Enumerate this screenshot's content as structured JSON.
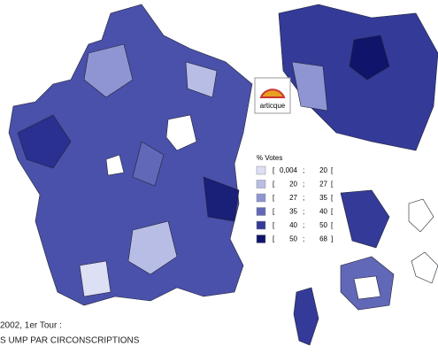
{
  "logo": "articque",
  "legend": {
    "title": "% Votes",
    "classes": [
      {
        "open": "[",
        "low": "0,004",
        "sep": ";",
        "high": "20",
        "close": "[",
        "color": "#dde0f5"
      },
      {
        "open": "[",
        "low": "20",
        "sep": ";",
        "high": "27",
        "close": "[",
        "color": "#b8bde6"
      },
      {
        "open": "[",
        "low": "27",
        "sep": ";",
        "high": "35",
        "close": "[",
        "color": "#8f95d2"
      },
      {
        "open": "[",
        "low": "35",
        "sep": ";",
        "high": "40",
        "close": "[",
        "color": "#6168b8"
      },
      {
        "open": "[",
        "low": "40",
        "sep": ";",
        "high": "50",
        "close": "[",
        "color": "#333a98"
      },
      {
        "open": "[",
        "low": "50",
        "sep": ";",
        "high": "68",
        "close": "]",
        "color": "#10146a"
      }
    ]
  },
  "caption": {
    "line1": "2002, 1er Tour :",
    "line2": "S UMP PAR CIRCONSCRIPTIONS"
  }
}
